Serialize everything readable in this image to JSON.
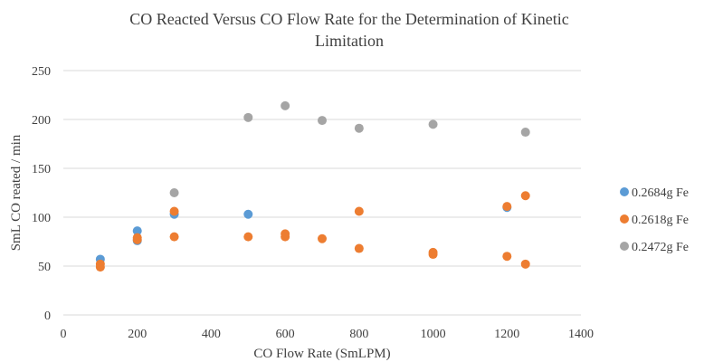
{
  "chart_data": {
    "type": "scatter",
    "title_lines": [
      "CO Reacted Versus CO Flow Rate for the Determination of Kinetic",
      "Limitation"
    ],
    "xlabel": "CO Flow Rate (SmLPM)",
    "ylabel": "SmL CO reated / min",
    "xlim": [
      0,
      1400
    ],
    "ylim": [
      0,
      250
    ],
    "xticks": [
      0,
      200,
      400,
      600,
      800,
      1000,
      1200,
      1400
    ],
    "yticks": [
      0,
      50,
      100,
      150,
      200,
      250
    ],
    "grid": "horizontal",
    "legend_position": "right",
    "series": [
      {
        "name": "0.2684g Fe",
        "color": "#5b9bd5",
        "points": [
          [
            100,
            57
          ],
          [
            200,
            76
          ],
          [
            200,
            86
          ],
          [
            300,
            103
          ],
          [
            500,
            103
          ],
          [
            1200,
            110
          ]
        ]
      },
      {
        "name": "0.2618g Fe",
        "color": "#ed7d31",
        "points": [
          [
            100,
            49
          ],
          [
            100,
            52
          ],
          [
            200,
            77
          ],
          [
            200,
            79
          ],
          [
            300,
            80
          ],
          [
            300,
            106
          ],
          [
            500,
            80
          ],
          [
            600,
            80
          ],
          [
            600,
            83
          ],
          [
            700,
            78
          ],
          [
            800,
            68
          ],
          [
            800,
            106
          ],
          [
            1000,
            62
          ],
          [
            1000,
            64
          ],
          [
            1200,
            60
          ],
          [
            1200,
            111
          ],
          [
            1250,
            52
          ],
          [
            1250,
            122
          ]
        ]
      },
      {
        "name": "0.2472g Fe",
        "color": "#a5a5a5",
        "points": [
          [
            300,
            125
          ],
          [
            500,
            202
          ],
          [
            600,
            214
          ],
          [
            700,
            199
          ],
          [
            800,
            191
          ],
          [
            1000,
            195
          ],
          [
            1250,
            187
          ]
        ]
      }
    ]
  }
}
